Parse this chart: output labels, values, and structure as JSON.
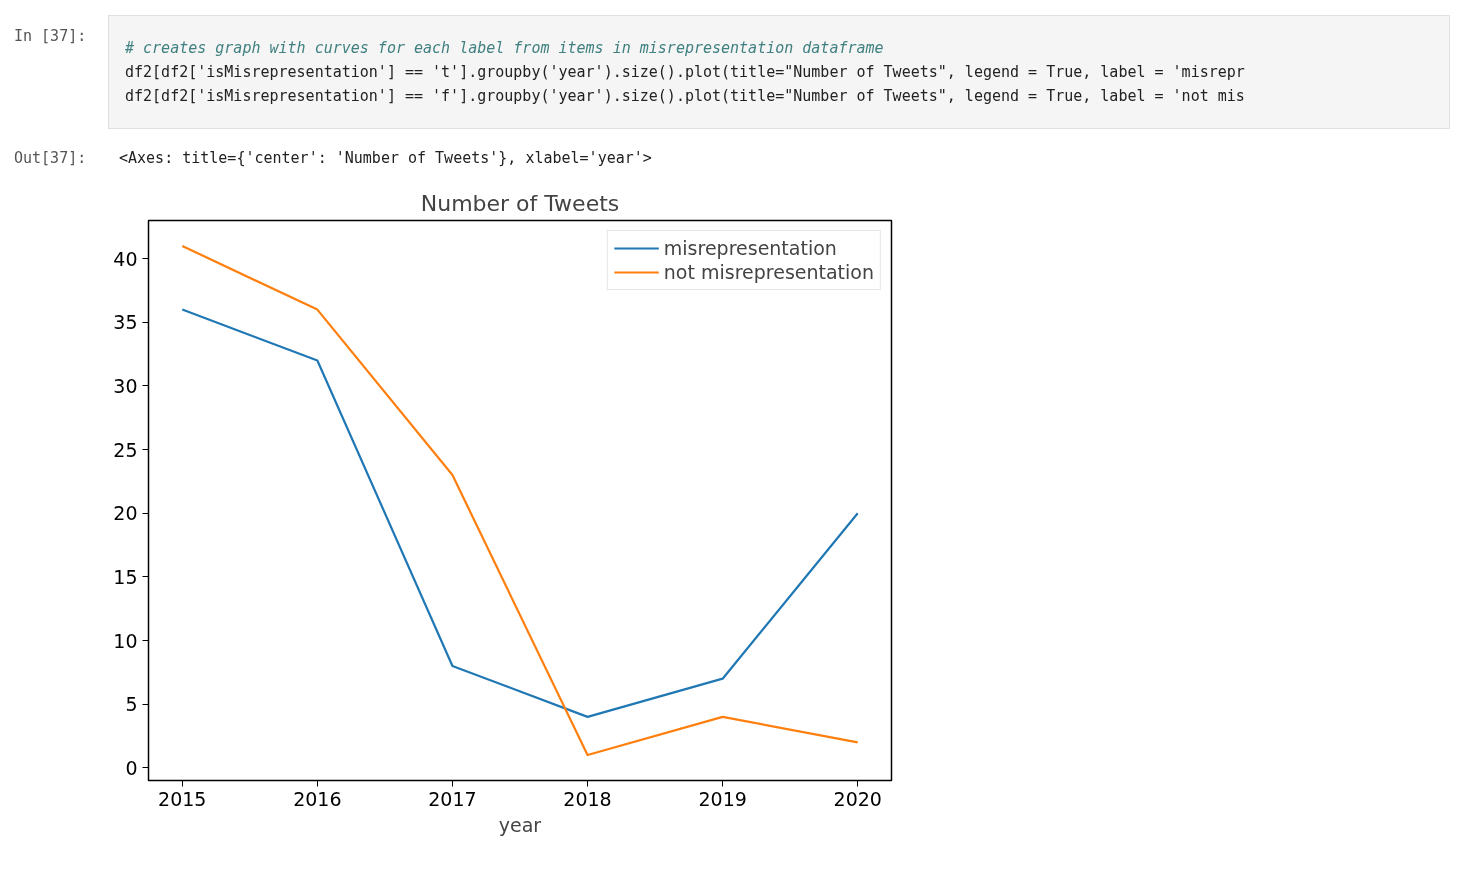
{
  "chart_data": {
    "type": "line",
    "title": "Number of Tweets",
    "xlabel": "year",
    "annotations": [
      "In [37]:",
      "# creates graph with curves for each label from items in misrepresentation dataframe",
      "df2[df2['isMisrepresentation'] == 't'].groupby('year').size().plot(title=\"Number of Tweets\", legend = True, label = 'misrepr",
      "df2[df2['isMisrepresentation'] == 'f'].groupby('year').size().plot(title=\"Number of Tweets\", legend = True, label = 'not mis",
      "Out[37]:",
      "<Axes: title={'center': 'Number of Tweets'}, xlabel='year'>"
    ],
    "x": [
      2015,
      2016,
      2017,
      2018,
      2019,
      2020
    ],
    "series": [
      {
        "name": "misrepresentation",
        "color": "#1f77b4",
        "values": [
          36,
          32,
          8,
          4,
          7,
          20
        ]
      },
      {
        "name": "not misrepresentation",
        "color": "#ff7f0e",
        "values": [
          41,
          36,
          23,
          1,
          4,
          2
        ]
      }
    ],
    "xlim": [
      2014.75,
      2020.25
    ],
    "xticks": [
      2015,
      2016,
      2017,
      2018,
      2019,
      2020
    ],
    "ylim": [
      -1,
      43
    ],
    "yticks": [
      0,
      5,
      10,
      15,
      20,
      25,
      30,
      35,
      40
    ],
    "grid": false,
    "legend": "top right",
    "marker": "none",
    "line_style": "solid"
  }
}
